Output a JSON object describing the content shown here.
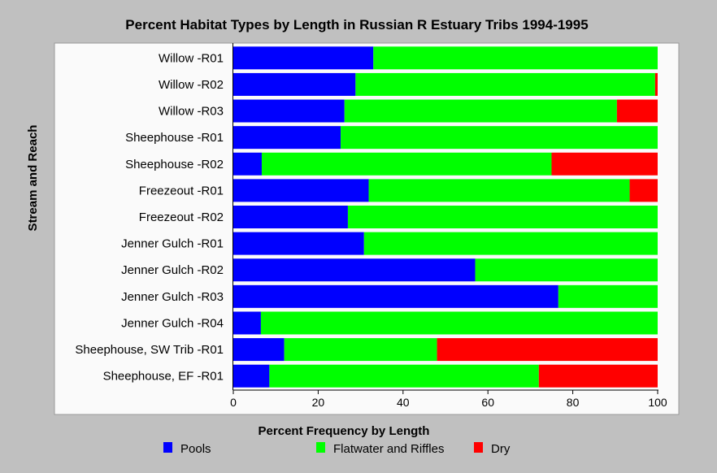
{
  "chart_data": {
    "type": "bar",
    "orientation": "horizontal",
    "stacked": true,
    "title": "Percent Habitat Types by Length in Russian R Estuary Tribs 1994-1995",
    "xlabel": "Percent Frequency by Length",
    "ylabel": "Stream and Reach",
    "xlim": [
      0,
      100
    ],
    "xticks": [
      "0",
      "20",
      "40",
      "60",
      "80",
      "100"
    ],
    "categories": [
      "Willow -R01",
      "Willow -R02",
      "Willow -R03",
      "Sheephouse -R01",
      "Sheephouse -R02",
      "Freezeout -R01",
      "Freezeout -R02",
      "Jenner Gulch -R01",
      "Jenner Gulch -R02",
      "Jenner Gulch -R03",
      "Jenner Gulch -R04",
      "Sheephouse, SW Trib -R01",
      "Sheephouse, EF -R01"
    ],
    "series": [
      {
        "name": "Pools",
        "color": "#0000ff",
        "values": [
          33,
          28.8,
          26.2,
          25.3,
          6.7,
          31.9,
          27,
          30.8,
          57,
          76.6,
          6.5,
          12,
          8.5
        ]
      },
      {
        "name": "Flatwater and Riffles",
        "color": "#00ff00",
        "values": [
          67,
          70.6,
          64.2,
          74.7,
          68.3,
          61.5,
          73,
          69.2,
          43,
          23.4,
          93.5,
          36,
          63.5
        ]
      },
      {
        "name": "Dry",
        "color": "#ff0000",
        "values": [
          0,
          0.6,
          9.6,
          0,
          25,
          6.6,
          0,
          0,
          0,
          0,
          0,
          52,
          28
        ]
      }
    ],
    "grid": false,
    "legend_position": "bottom"
  }
}
